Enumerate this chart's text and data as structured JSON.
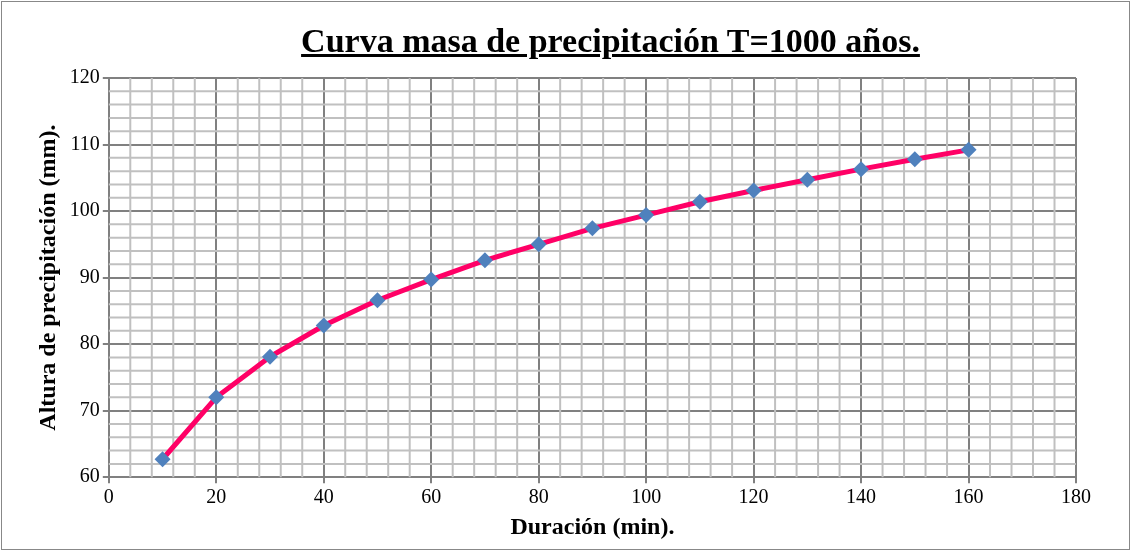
{
  "chart_data": {
    "type": "line",
    "title": "Curva masa de precipitación T=1000 años.",
    "xlabel": "Duración (min).",
    "ylabel": "Altura de precipitación (mm).",
    "x": [
      10,
      20,
      30,
      40,
      50,
      60,
      70,
      80,
      90,
      100,
      110,
      120,
      130,
      140,
      150,
      160
    ],
    "series": [
      {
        "color": "#ff0066",
        "colors": [
          "#4f81bd",
          "#4f81bd",
          "#4f81bd",
          "#4f81bd",
          "#4f81bd",
          "#4f81bd",
          "#4f81bd",
          "#4f81bd",
          "#4f81bd",
          "#4f81bd",
          "#4f81bd",
          "#4f81bd",
          "#4f81bd",
          "#4f81bd",
          "#4f81bd",
          "#4f81bd"
        ],
        "values": [
          62.7,
          72.0,
          78.1,
          82.8,
          86.6,
          89.7,
          92.6,
          95.0,
          97.4,
          99.4,
          101.4,
          103.1,
          104.7,
          106.3,
          107.8,
          109.2
        ]
      }
    ],
    "xlim": [
      0,
      180
    ],
    "xticks": [
      0,
      20,
      40,
      60,
      80,
      100,
      120,
      140,
      160,
      180
    ],
    "ylim": [
      60,
      120
    ],
    "yticks": [
      60,
      70,
      80,
      90,
      100,
      110,
      120
    ],
    "grid": true,
    "marker": "diamond",
    "line_style": "solid",
    "legend": false
  }
}
